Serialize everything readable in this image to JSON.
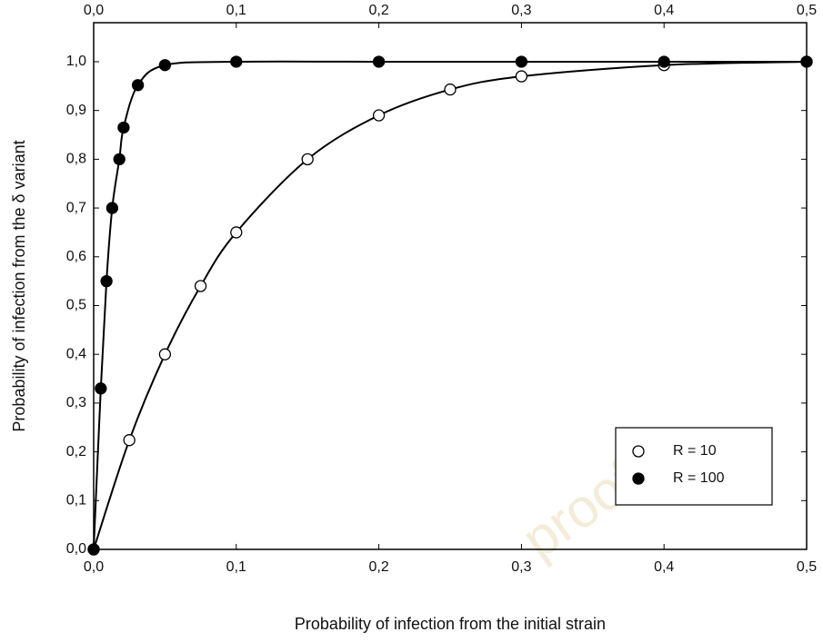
{
  "chart_data": {
    "type": "scatter",
    "xlabel": "Probability of infection from the initial strain",
    "ylabel": "Probability of infection from the δ variant",
    "watermark": "proof",
    "xlim": [
      0,
      0.5
    ],
    "ylim": [
      0,
      1.08
    ],
    "xticks": [
      {
        "value": 0,
        "label": "0,0"
      },
      {
        "value": 0.1,
        "label": "0,1"
      },
      {
        "value": 0.2,
        "label": "0,2"
      },
      {
        "value": 0.3,
        "label": "0,3"
      },
      {
        "value": 0.4,
        "label": "0,4"
      },
      {
        "value": 0.5,
        "label": "0,5"
      }
    ],
    "yticks": [
      {
        "value": 0,
        "label": "0,0"
      },
      {
        "value": 0.1,
        "label": "0,1"
      },
      {
        "value": 0.2,
        "label": "0,2"
      },
      {
        "value": 0.3,
        "label": "0,3"
      },
      {
        "value": 0.4,
        "label": "0,4"
      },
      {
        "value": 0.5,
        "label": "0,5"
      },
      {
        "value": 0.6,
        "label": "0,6"
      },
      {
        "value": 0.7,
        "label": "0,7"
      },
      {
        "value": 0.8,
        "label": "0,8"
      },
      {
        "value": 0.9,
        "label": "0,9"
      },
      {
        "value": 1.0,
        "label": "1,0"
      }
    ],
    "legend": "lower right",
    "series": [
      {
        "name": "R = 10",
        "color": "#000000",
        "filled": false,
        "x": [
          0,
          0.025,
          0.05,
          0.075,
          0.1,
          0.15,
          0.2,
          0.25,
          0.3,
          0.4,
          0.5
        ],
        "values": [
          0,
          0.224,
          0.4,
          0.54,
          0.65,
          0.8,
          0.89,
          0.943,
          0.97,
          0.993,
          1.0
        ]
      },
      {
        "name": "R = 100",
        "color": "#000000",
        "filled": true,
        "x": [
          0,
          0.005,
          0.009,
          0.013,
          0.018,
          0.021,
          0.031,
          0.05,
          0.1,
          0.2,
          0.3,
          0.4,
          0.5
        ],
        "values": [
          0,
          0.33,
          0.55,
          0.7,
          0.8,
          0.865,
          0.952,
          0.993,
          1.0,
          1.0,
          1.0,
          1.0,
          1.0
        ]
      }
    ]
  }
}
